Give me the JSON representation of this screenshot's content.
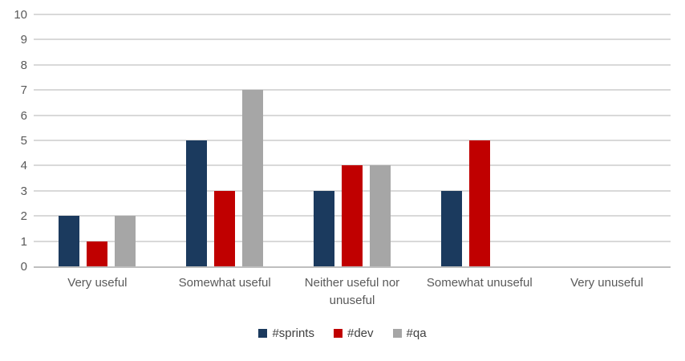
{
  "chart_data": {
    "type": "bar",
    "title": "",
    "categories": [
      "Very useful",
      "Somewhat useful",
      "Neither useful nor unuseful",
      "Somewhat unuseful",
      "Very unuseful"
    ],
    "series": [
      {
        "name": "#sprints",
        "color": "#1b3a5e",
        "values": [
          2,
          5,
          3,
          3,
          0
        ]
      },
      {
        "name": "#dev",
        "color": "#c00000",
        "values": [
          1,
          3,
          4,
          5,
          0
        ]
      },
      {
        "name": "#qa",
        "color": "#a6a6a6",
        "values": [
          2,
          7,
          4,
          0,
          0
        ]
      }
    ],
    "ylim": [
      0,
      10
    ],
    "yticks": [
      0,
      1,
      2,
      3,
      4,
      5,
      6,
      7,
      8,
      9,
      10
    ],
    "xlabel": "",
    "ylabel": "",
    "grid": true,
    "legend_position": "bottom",
    "colors": {
      "gridline": "#d9d9d9",
      "axis_line": "#bfbfbf",
      "tick_text": "#595959",
      "legend_text": "#404040",
      "background": "#ffffff"
    }
  }
}
